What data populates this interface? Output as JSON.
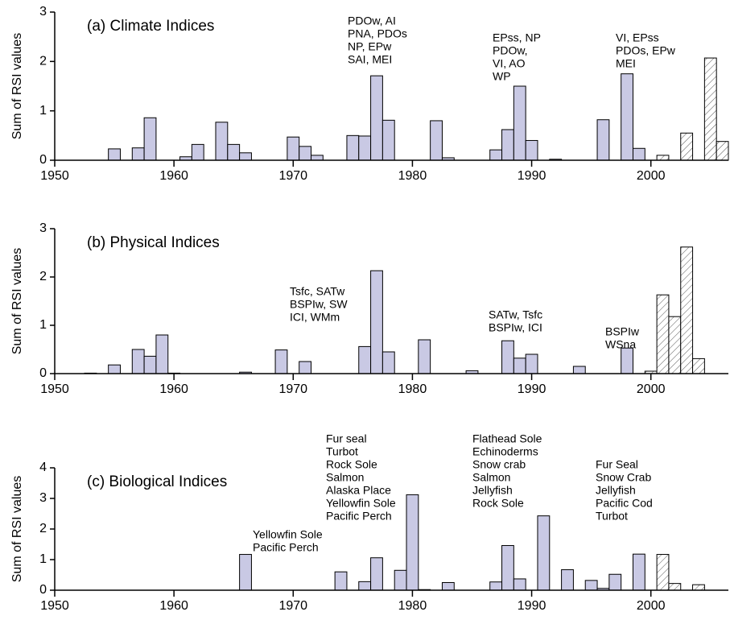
{
  "chart_data": [
    {
      "type": "bar",
      "title": "(a) Climate Indices",
      "ylabel": "Sum of RSI values",
      "xlim": [
        1950,
        2006.5
      ],
      "xticks": [
        1950,
        1960,
        1970,
        1980,
        1990,
        2000
      ],
      "ylim": [
        0,
        3
      ],
      "yticks": [
        0,
        1,
        2,
        3
      ],
      "series": [
        {
          "color": "#c9c9e4",
          "pattern": "solid",
          "x": [
            1955,
            1957,
            1958,
            1961,
            1962,
            1964,
            1965,
            1966,
            1970,
            1971,
            1972,
            1975,
            1976,
            1977,
            1978,
            1982,
            1983,
            1987,
            1988,
            1989,
            1990,
            1992,
            1996,
            1998,
            1999
          ],
          "values": [
            0.23,
            0.25,
            0.86,
            0.07,
            0.32,
            0.77,
            0.32,
            0.15,
            0.47,
            0.28,
            0.1,
            0.5,
            0.49,
            1.71,
            0.81,
            0.8,
            0.05,
            0.21,
            0.62,
            1.5,
            0.4,
            0.02,
            0.82,
            1.75,
            0.24
          ]
        },
        {
          "color": "#ffffff",
          "pattern": "hatch",
          "x": [
            2001,
            2003,
            2005,
            2006
          ],
          "values": [
            0.1,
            0.55,
            2.07,
            0.38
          ]
        }
      ],
      "annotations": [
        [
          "PDOw, AI",
          "PNA, PDOs",
          "NP, EPw",
          "SAI, MEI"
        ],
        [
          "EPss, NP",
          "PDOw,",
          "VI, AO",
          "WP"
        ],
        [
          "VI, EPss",
          "PDOs, EPw",
          "MEI"
        ]
      ]
    },
    {
      "type": "bar",
      "title": "(b) Physical Indices",
      "ylabel": "Sum of RSI values",
      "xlim": [
        1950,
        2006.5
      ],
      "xticks": [
        1950,
        1960,
        1970,
        1980,
        1990,
        2000
      ],
      "ylim": [
        0,
        3
      ],
      "yticks": [
        0,
        1,
        2,
        3
      ],
      "series": [
        {
          "color": "#c9c9e4",
          "pattern": "solid",
          "x": [
            1953,
            1955,
            1957,
            1958,
            1959,
            1960,
            1966,
            1969,
            1971,
            1976,
            1977,
            1978,
            1981,
            1985,
            1988,
            1989,
            1990,
            1994,
            1998
          ],
          "values": [
            0.01,
            0.18,
            0.5,
            0.36,
            0.8,
            0.01,
            0.03,
            0.49,
            0.25,
            0.56,
            2.13,
            0.45,
            0.7,
            0.06,
            0.68,
            0.32,
            0.4,
            0.15,
            0.53
          ]
        },
        {
          "color": "#ffffff",
          "pattern": "hatch",
          "x": [
            2000,
            2001,
            2002,
            2003,
            2004
          ],
          "values": [
            0.05,
            1.63,
            1.18,
            2.62,
            0.31
          ]
        }
      ],
      "annotations": [
        [
          "Tsfc, SATw",
          "BSPIw, SW",
          "ICI, WMm"
        ],
        [
          "SATw, Tsfc",
          "BSPIw, ICI"
        ],
        [
          "BSPIw",
          "WSna"
        ]
      ]
    },
    {
      "type": "bar",
      "title": "(c) Biological Indices",
      "ylabel": "Sum of RSI values",
      "xlim": [
        1950,
        2006.5
      ],
      "xticks": [
        1950,
        1960,
        1970,
        1980,
        1990,
        2000
      ],
      "ylim": [
        0,
        4
      ],
      "yticks": [
        0,
        1,
        2,
        3,
        4
      ],
      "series": [
        {
          "color": "#c9c9e4",
          "pattern": "solid",
          "x": [
            1966,
            1974,
            1976,
            1977,
            1979,
            1980,
            1981,
            1983,
            1987,
            1988,
            1989,
            1991,
            1993,
            1995,
            1996,
            1997,
            1999
          ],
          "values": [
            1.17,
            0.6,
            0.28,
            1.06,
            0.65,
            3.12,
            0.02,
            0.25,
            0.27,
            1.46,
            0.37,
            2.43,
            0.67,
            0.32,
            0.06,
            0.52,
            1.18
          ]
        },
        {
          "color": "#ffffff",
          "pattern": "hatch",
          "x": [
            2001,
            2002,
            2004
          ],
          "values": [
            1.17,
            0.22,
            0.18
          ]
        }
      ],
      "annotations": [
        [
          "Yellowfin Sole",
          "Pacific Perch"
        ],
        [
          "Fur seal",
          "Turbot",
          "Rock Sole",
          "Salmon",
          "Alaska Place",
          "Yellowfin Sole",
          "Pacific Perch"
        ],
        [
          "Flathead Sole",
          "Echinoderms",
          "Snow crab",
          "Salmon",
          "Jellyfish",
          "Rock Sole"
        ],
        [
          "Fur Seal",
          "Snow Crab",
          "Jellyfish",
          "Pacific Cod",
          "Turbot"
        ]
      ]
    }
  ]
}
